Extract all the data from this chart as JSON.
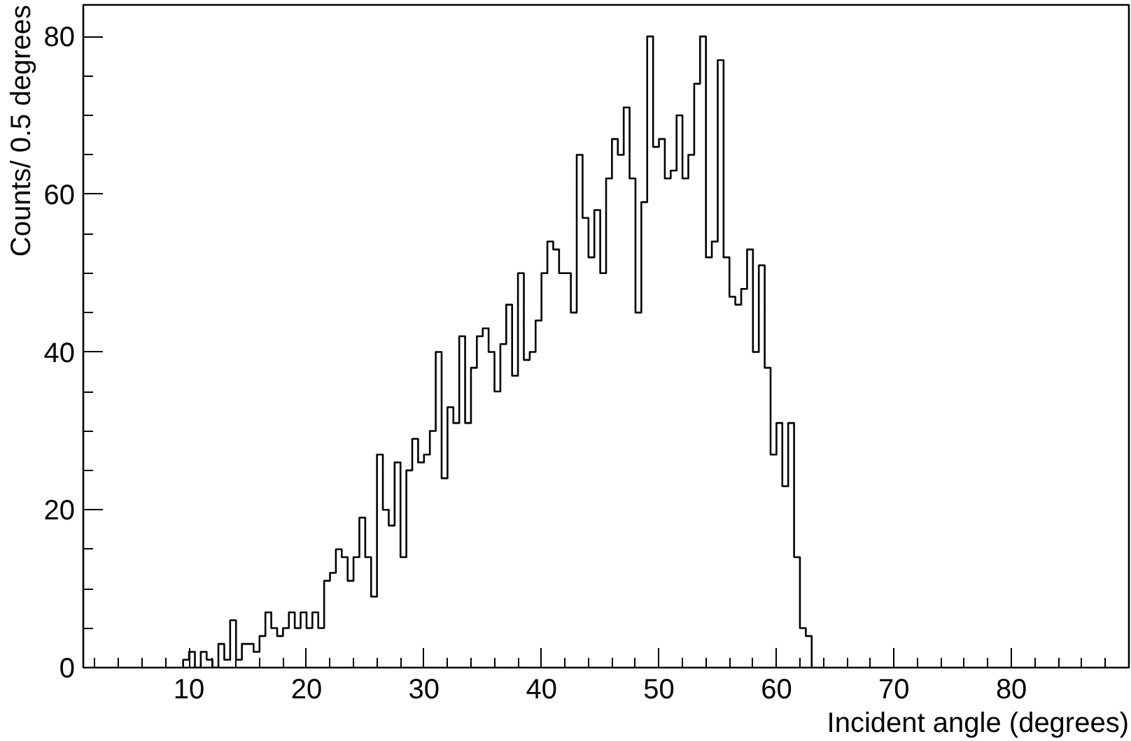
{
  "chart_data": {
    "type": "histogram",
    "xlabel": "Incident angle (degrees)",
    "ylabel": "Counts/ 0.5 degrees",
    "bins": [
      9.5,
      10,
      10.5,
      11,
      11.5,
      12,
      12.5,
      13,
      13.5,
      14,
      14.5,
      15,
      15.5,
      16,
      16.5,
      17,
      17.5,
      18,
      18.5,
      19,
      19.5,
      20,
      20.5,
      21,
      21.5,
      22,
      22.5,
      23,
      23.5,
      24,
      24.5,
      25,
      25.5,
      26,
      26.5,
      27,
      27.5,
      28,
      28.5,
      29,
      29.5,
      30,
      30.5,
      31,
      31.5,
      32,
      32.5,
      33,
      33.5,
      34,
      34.5,
      35,
      35.5,
      36,
      36.5,
      37,
      37.5,
      38,
      38.5,
      39,
      39.5,
      40,
      40.5,
      41,
      41.5,
      42,
      42.5,
      43,
      43.5,
      44,
      44.5,
      45,
      45.5,
      46,
      46.5,
      47,
      47.5,
      48,
      48.5,
      49,
      49.5,
      50,
      50.5,
      51,
      51.5,
      52,
      52.5,
      53,
      53.5,
      54,
      54.5,
      55,
      55.5,
      56,
      56.5,
      57,
      57.5,
      58,
      58.5,
      59,
      59.5,
      60,
      60.5,
      61,
      61.5,
      62,
      62.5,
      63
    ],
    "values": [
      1,
      2,
      0,
      2,
      1,
      0,
      3,
      1,
      6,
      1,
      3,
      3,
      2,
      4,
      7,
      5,
      4,
      5,
      7,
      5,
      7,
      5,
      7,
      5,
      11,
      12,
      15,
      14,
      11,
      14,
      19,
      14,
      9,
      27,
      20,
      18,
      26,
      14,
      25,
      29,
      26,
      27,
      30,
      40,
      24,
      33,
      31,
      42,
      31,
      38,
      42,
      43,
      40,
      35,
      41,
      46,
      37,
      50,
      39,
      40,
      44,
      50,
      54,
      53,
      50,
      50,
      45,
      65,
      57,
      52,
      58,
      50,
      62,
      67,
      65,
      71,
      62,
      45,
      59,
      80,
      66,
      67,
      62,
      63,
      70,
      62,
      65,
      74,
      80,
      52,
      54,
      77,
      52,
      47,
      46,
      48,
      53,
      40,
      51,
      38,
      27,
      31,
      23,
      31,
      14,
      5,
      4
    ],
    "color": "#000000",
    "xlim": [
      1,
      90
    ],
    "ylim": [
      0,
      84
    ],
    "xticks": [
      10,
      20,
      30,
      40,
      50,
      60,
      70,
      80
    ],
    "yticks": [
      0,
      20,
      40,
      60,
      80
    ],
    "grid": false
  }
}
